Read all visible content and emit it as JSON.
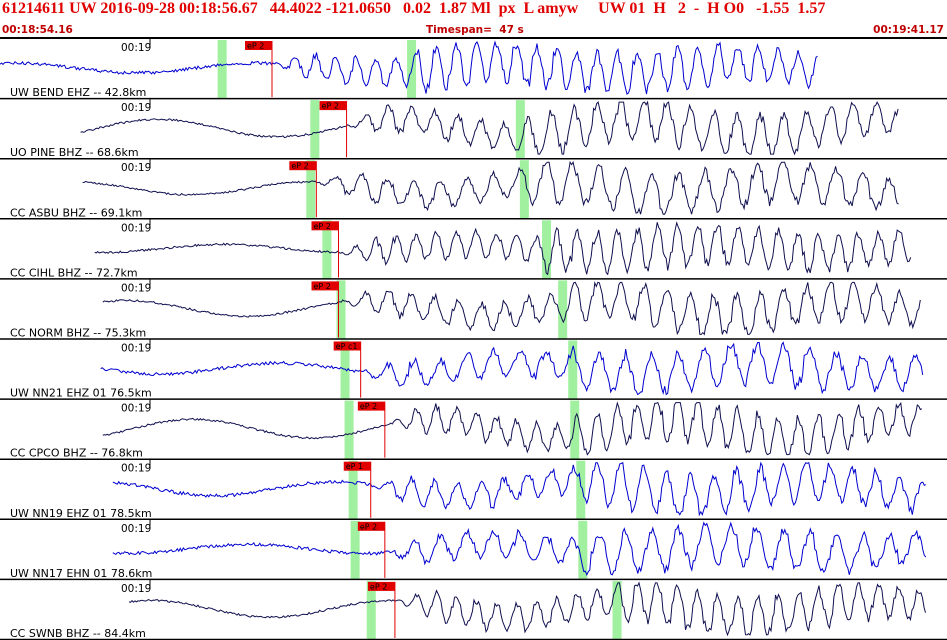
{
  "header": {
    "title": "61214611 UW 2016-09-28 00:18:56.67   44.4022 -121.0650   0.02  1.87 Ml  px  L amyw     UW 01  H   2  -  H O0   -1.55  1.57",
    "time_start": "00:18:54.16",
    "timespan": "Timespan=  47 s",
    "time_end": "00:19:41.17"
  },
  "colors": {
    "header_text": "#e00000",
    "pick_box": "#e00000",
    "pick_line": "#e00000",
    "s_window": "#a0f0a0",
    "trace_blue": "#0000d0",
    "trace_navy": "#101050",
    "separator": "#000000"
  },
  "chart_data": {
    "type": "seismogram-record-section",
    "timespan_s": 47,
    "time_start": "00:18:54.16",
    "time_end": "00:19:41.17",
    "channels": [
      {
        "label": "UW BEND EHZ -- 42.8km",
        "tick": "00:19",
        "pick": "eP 2",
        "p_time_s": 13.5,
        "s_time_s": 20.4,
        "s_marker_s": 11.0,
        "color": "blue",
        "trace_start_s": 0.0,
        "trace_end_s": 40.6
      },
      {
        "label": "UO PINE BHZ -- 68.6km",
        "tick": "00:19",
        "pick": "eP 2",
        "p_time_s": 17.2,
        "s_time_s": 25.8,
        "s_marker_s": 15.6,
        "color": "navy",
        "trace_start_s": 4.0,
        "trace_end_s": 44.6
      },
      {
        "label": "CC ASBU BHZ -- 69.1km",
        "tick": "00:19",
        "pick": "eP 2",
        "p_time_s": 15.7,
        "s_time_s": 26.0,
        "s_marker_s": 15.4,
        "color": "navy",
        "trace_start_s": 4.1,
        "trace_end_s": 44.6
      },
      {
        "label": "CC CIHL BHZ -- 72.7km",
        "tick": "00:19",
        "pick": "eP 2",
        "p_time_s": 16.8,
        "s_time_s": 27.1,
        "s_marker_s": 16.2,
        "color": "navy",
        "trace_start_s": 4.7,
        "trace_end_s": 45.2
      },
      {
        "label": "CC NORM BHZ -- 75.3km",
        "tick": "00:19",
        "pick": "eP 2",
        "p_time_s": 16.8,
        "s_time_s": 27.9,
        "s_marker_s": 16.9,
        "color": "navy",
        "trace_start_s": 5.1,
        "trace_end_s": 45.7
      },
      {
        "label": "UW NN21 EHZ 01 76.5km",
        "tick": "00:19",
        "pick": "eP c1",
        "p_time_s": 17.9,
        "s_time_s": 28.4,
        "s_marker_s": 17.1,
        "color": "blue",
        "trace_start_s": 5.0,
        "trace_end_s": 45.8
      },
      {
        "label": "CC CPCO BHZ -- 76.8km",
        "tick": "00:19",
        "pick": "eP 2",
        "p_time_s": 19.1,
        "s_time_s": 28.5,
        "s_marker_s": 17.3,
        "color": "navy",
        "trace_start_s": 5.1,
        "trace_end_s": 45.8
      },
      {
        "label": "UW NN19 EHZ 01 78.5km",
        "tick": "00:19",
        "pick": "eP 1",
        "p_time_s": 18.4,
        "s_time_s": 28.8,
        "s_marker_s": 17.5,
        "color": "blue",
        "trace_start_s": 5.6,
        "trace_end_s": 46.0
      },
      {
        "label": "UW NN17 EHN 01 78.6km",
        "tick": "00:19",
        "pick": "eP 2",
        "p_time_s": 19.1,
        "s_time_s": 28.9,
        "s_marker_s": 17.6,
        "color": "blue",
        "trace_start_s": 5.6,
        "trace_end_s": 46.0
      },
      {
        "label": "CC SWNB BHZ -- 84.4km",
        "tick": "00:19",
        "pick": "eP 2",
        "p_time_s": 19.6,
        "s_time_s": 30.6,
        "s_marker_s": 18.4,
        "color": "navy",
        "trace_start_s": 6.4,
        "trace_end_s": 46.0
      }
    ]
  }
}
